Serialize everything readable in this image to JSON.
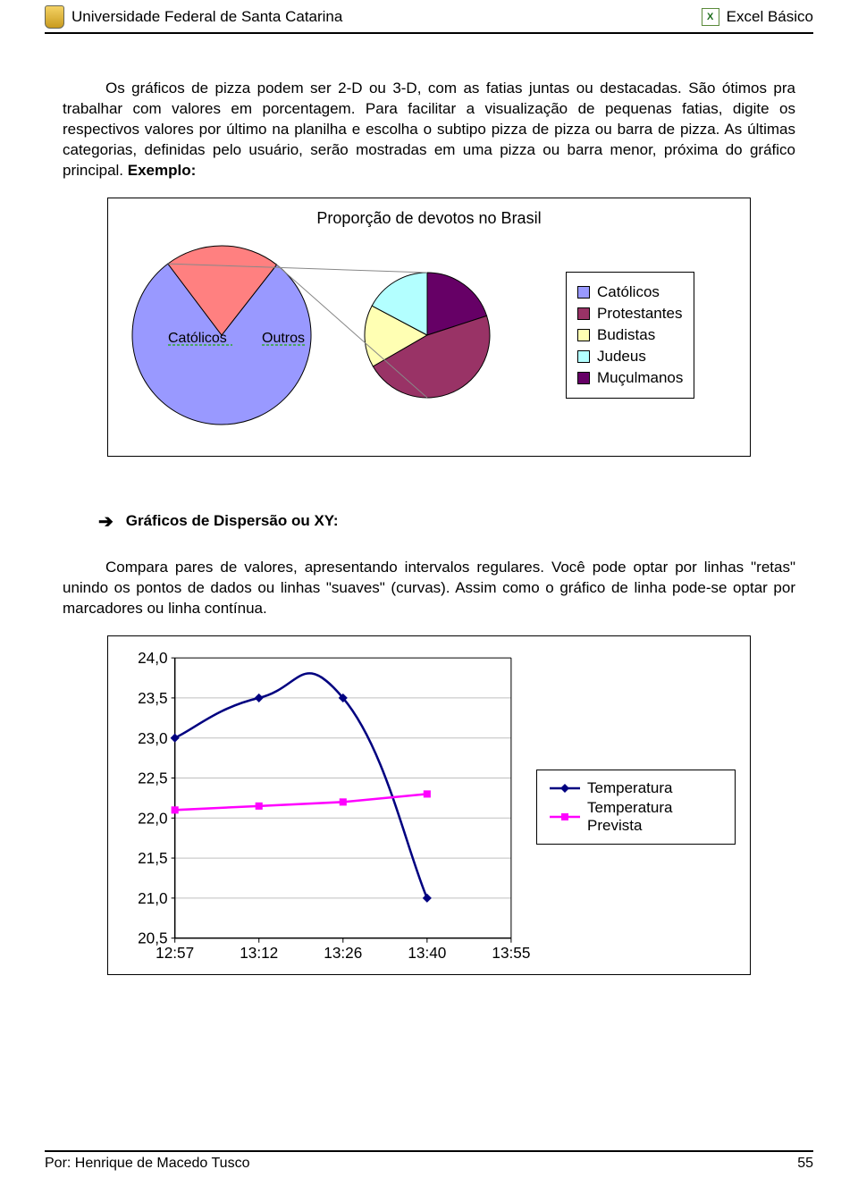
{
  "header": {
    "university": "Universidade Federal de Santa Catarina",
    "course": "Excel Básico"
  },
  "para1": "Os gráficos de pizza podem ser 2-D ou 3-D, com as fatias juntas ou destacadas. São ótimos pra trabalhar com valores em porcentagem. Para facilitar a visualização de pequenas fatias, digite os respectivos valores por último na planilha e escolha o subtipo pizza de pizza ou barra de pizza. As últimas categorias, definidas pelo usuário, serão mostradas em uma pizza ou barra menor, próxima do gráfico principal. ",
  "para1_bold": "Exemplo:",
  "pie_chart": {
    "title": "Proporção de devotos no Brasil",
    "main_labels": {
      "left": "Católicos",
      "right": "Outros"
    },
    "main_slices": [
      {
        "color": "#9999ff",
        "start": 0,
        "end": 285
      },
      {
        "color": "#ff8080",
        "start": 285,
        "end": 360
      }
    ],
    "sub_slices": [
      {
        "color": "#ffffb3",
        "start": 240,
        "end": 298
      },
      {
        "color": "#b3ffff",
        "start": 298,
        "end": 360
      },
      {
        "color": "#660066",
        "start": 0,
        "end": 72
      },
      {
        "color": "#993366",
        "start": 72,
        "end": 240
      }
    ],
    "legend": [
      {
        "label": "Católicos",
        "color": "#9999ff"
      },
      {
        "label": "Protestantes",
        "color": "#993366"
      },
      {
        "label": "Budistas",
        "color": "#ffffb3"
      },
      {
        "label": "Judeus",
        "color": "#b3ffff"
      },
      {
        "label": "Muçulmanos",
        "color": "#660066"
      }
    ],
    "outline": "#000000",
    "connector_color": "#888888"
  },
  "bullet_heading": "Gráficos de Dispersão ou XY:",
  "para2": "Compara pares de valores, apresentando intervalos regulares. Você pode optar por linhas \"retas\" unindo os pontos de dados ou linhas \"suaves\" (curvas). Assim como o gráfico de linha pode-se optar por marcadores ou linha contínua.",
  "xy_chart": {
    "y_ticks": [
      "24,0",
      "23,5",
      "23,0",
      "22,5",
      "22,0",
      "21,5",
      "21,0",
      "20,5"
    ],
    "y_values": [
      24.0,
      23.5,
      23.0,
      22.5,
      22.0,
      21.5,
      21.0,
      20.5
    ],
    "x_ticks": [
      "12:57",
      "13:12",
      "13:26",
      "13:40",
      "13:55"
    ],
    "series": [
      {
        "name": "Temperatura",
        "color": "#000080",
        "marker": "diamond",
        "curve": true,
        "points": [
          {
            "x": 0,
            "y": 23.0
          },
          {
            "x": 1,
            "y": 23.5
          },
          {
            "x": 2,
            "y": 23.5
          },
          {
            "x": 3,
            "y": 21.0
          }
        ]
      },
      {
        "name": "Temperatura Prevista",
        "color": "#ff00ff",
        "marker": "square",
        "curve": false,
        "points": [
          {
            "x": 0,
            "y": 22.1
          },
          {
            "x": 1,
            "y": 22.15
          },
          {
            "x": 2,
            "y": 22.2
          },
          {
            "x": 3,
            "y": 22.3
          }
        ]
      }
    ],
    "grid_color": "#bfbfbf",
    "axis_color": "#000000",
    "tick_font_size": 17
  },
  "footer": {
    "author": "Por: Henrique de Macedo Tusco",
    "page": "55"
  }
}
